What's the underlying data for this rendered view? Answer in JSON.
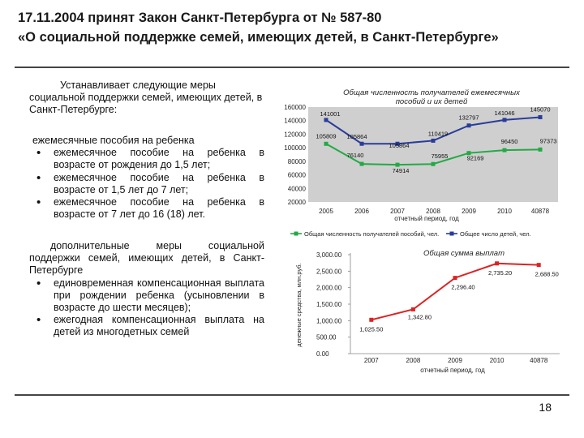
{
  "slide": {
    "title_line1": "17.11.2004 принят Закон Санкт-Петербурга от № 587-80",
    "title_line2": "«О социальной поддержке семей, имеющих детей, в Санкт-Петербурге»",
    "page_number": "18"
  },
  "left": {
    "intro": "Устанавливает следующие меры социальной поддержки семей, имеющих детей, в Санкт-Петербурге:",
    "monthly_heading": "ежемесячные пособия на ребенка",
    "monthly_items": [
      "ежемесячное пособие на ребенка в возрасте от рождения до 1,5 лет;",
      "ежемесячное пособие на ребенка в возрасте от 1,5 лет до 7 лет;",
      "ежемесячное пособие на ребенка в возрасте от 7 лет до 16 (18) лет."
    ],
    "additional_heading": "дополнительные меры социальной поддержки семей, имеющих детей, в Санкт-Петербурге",
    "additional_items": [
      "единовременная компенсационная выплата при рождении ребенка (усыновлении в возрасте до шести месяцев);",
      "ежегодная компенсационная выплата на детей из многодетных семей"
    ]
  },
  "chart_data": [
    {
      "type": "line",
      "title": "Общая численность получателей ежемесячных пособий и их детей",
      "xlabel": "отчетный период, год",
      "ylabel": "",
      "categories": [
        "2005",
        "2006",
        "2007",
        "2008",
        "2009",
        "2010",
        "40878"
      ],
      "ylim": [
        20000,
        160000
      ],
      "yticks": [
        "20000",
        "40000",
        "60000",
        "80000",
        "100000",
        "120000",
        "140000",
        "160000"
      ],
      "grid": false,
      "legend": "bottom",
      "colors": {
        "recipients": "#22aa44",
        "children": "#2a3c9a",
        "background": "#cfcfcf"
      },
      "series": [
        {
          "name": "Общая численность получателей пособий, чел.",
          "values": [
            105809,
            76140,
            74914,
            75955,
            92169,
            96450,
            97373
          ],
          "labels": [
            "105809",
            "76140",
            "74914",
            "75955",
            "92169",
            "96450",
            "97373"
          ]
        },
        {
          "name": "Общее число детей, чел.",
          "values": [
            141001,
            105864,
            105864,
            110419,
            132797,
            141046,
            145070
          ],
          "labels": [
            "141001",
            "105864",
            "105864",
            "110419",
            "132797",
            "141046",
            "145070"
          ]
        }
      ]
    },
    {
      "type": "line",
      "title": "Общая сумма выплат",
      "xlabel": "отчетный период, год",
      "ylabel": "денежные средства, млн.руб.",
      "categories": [
        "2007",
        "2008",
        "2009",
        "2010",
        "40878"
      ],
      "ylim": [
        0,
        3000
      ],
      "yticks": [
        "0.00",
        "500.00",
        "1,000.00",
        "1,500.00",
        "2,000.00",
        "2,500.00",
        "3,000.00"
      ],
      "grid": false,
      "legend": "none",
      "colors": {
        "line": "#dd2222"
      },
      "series": [
        {
          "name": "",
          "values": [
            1025.5,
            1342.8,
            2296.4,
            2735.2,
            2688.5
          ],
          "labels": [
            "1,025.50",
            "1,342.80",
            "2,296.40",
            "2,735.20",
            "2,688.50"
          ]
        }
      ]
    }
  ]
}
